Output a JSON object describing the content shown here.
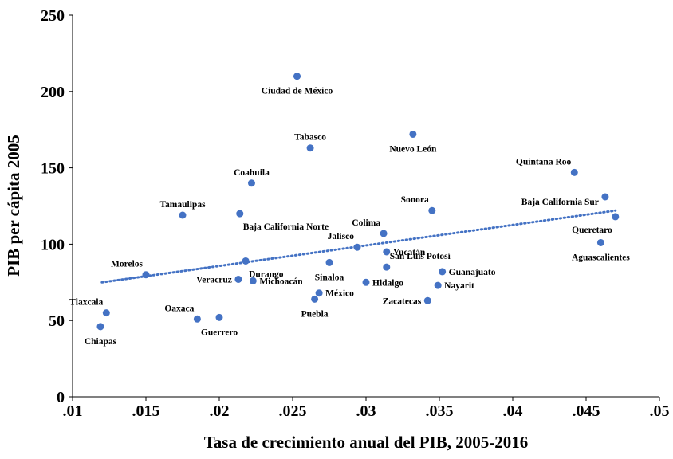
{
  "chart_data": {
    "type": "scatter",
    "title": "",
    "xlabel": "Tasa de crecimiento anual del PIB, 2005-2016",
    "ylabel": "PIB per cápita 2005",
    "xlim": [
      0.01,
      0.05
    ],
    "ylim": [
      0,
      250
    ],
    "x_ticks": [
      0.01,
      0.015,
      0.02,
      0.025,
      0.03,
      0.035,
      0.04,
      0.045,
      0.05
    ],
    "x_tick_labels": [
      ".01",
      ".015",
      ".02",
      ".025",
      ".03",
      ".035",
      ".04",
      ".045",
      ".05"
    ],
    "y_ticks": [
      0,
      50,
      100,
      150,
      200,
      250
    ],
    "y_tick_labels": [
      "0",
      "50",
      "100",
      "150",
      "200",
      "250"
    ],
    "grid": false,
    "point_color": "#4472c4",
    "trendline": {
      "style": "dotted",
      "color": "#4472c4",
      "x": [
        0.012,
        0.047
      ],
      "y": [
        75,
        122
      ]
    },
    "points": [
      {
        "label": "Ciudad de México",
        "x": 0.0253,
        "y": 210,
        "anchor": "below"
      },
      {
        "label": "Tabasco",
        "x": 0.0262,
        "y": 163,
        "anchor": "above"
      },
      {
        "label": "Nuevo León",
        "x": 0.0332,
        "y": 172,
        "anchor": "below"
      },
      {
        "label": "Quintana Roo",
        "x": 0.0442,
        "y": 147,
        "anchor": "above-left"
      },
      {
        "label": "Baja California Sur",
        "x": 0.0463,
        "y": 131,
        "anchor": "far-left"
      },
      {
        "label": "Coahuila",
        "x": 0.0222,
        "y": 140,
        "anchor": "above"
      },
      {
        "label": "Sonora",
        "x": 0.0345,
        "y": 122,
        "anchor": "above-left"
      },
      {
        "label": "Tamaulipas",
        "x": 0.0175,
        "y": 119,
        "anchor": "above"
      },
      {
        "label": "Baja California Norte",
        "x": 0.0214,
        "y": 120,
        "anchor": "below-right"
      },
      {
        "label": "Queretaro",
        "x": 0.047,
        "y": 118,
        "anchor": "below-left"
      },
      {
        "label": "Colima",
        "x": 0.0312,
        "y": 107,
        "anchor": "above-left"
      },
      {
        "label": "Jalisco",
        "x": 0.0294,
        "y": 98,
        "anchor": "above-left"
      },
      {
        "label": "Aguascalientes",
        "x": 0.046,
        "y": 101,
        "anchor": "below"
      },
      {
        "label": "Yucatán",
        "x": 0.0314,
        "y": 95,
        "anchor": "right"
      },
      {
        "label": "Durango",
        "x": 0.0218,
        "y": 89,
        "anchor": "below-right"
      },
      {
        "label": "Sinaloa",
        "x": 0.0275,
        "y": 88,
        "anchor": "below"
      },
      {
        "label": "San Luis Potosí",
        "x": 0.0314,
        "y": 85,
        "anchor": "above-right"
      },
      {
        "label": "Guanajuato",
        "x": 0.0352,
        "y": 82,
        "anchor": "right"
      },
      {
        "label": "Morelos",
        "x": 0.015,
        "y": 80,
        "anchor": "above-left"
      },
      {
        "label": "Veracruz",
        "x": 0.0213,
        "y": 77,
        "anchor": "left"
      },
      {
        "label": "Michoacán",
        "x": 0.0223,
        "y": 76,
        "anchor": "right"
      },
      {
        "label": "Hidalgo",
        "x": 0.03,
        "y": 75,
        "anchor": "right"
      },
      {
        "label": "Nayarit",
        "x": 0.0349,
        "y": 73,
        "anchor": "right"
      },
      {
        "label": "México",
        "x": 0.0268,
        "y": 68,
        "anchor": "right"
      },
      {
        "label": "Puebla",
        "x": 0.0265,
        "y": 64,
        "anchor": "below"
      },
      {
        "label": "Zacatecas",
        "x": 0.0342,
        "y": 63,
        "anchor": "left"
      },
      {
        "label": "Tlaxcala",
        "x": 0.0123,
        "y": 55,
        "anchor": "above-left"
      },
      {
        "label": "Oaxaca",
        "x": 0.0185,
        "y": 51,
        "anchor": "above-left"
      },
      {
        "label": "Guerrero",
        "x": 0.02,
        "y": 52,
        "anchor": "below"
      },
      {
        "label": "Chiapas",
        "x": 0.0119,
        "y": 46,
        "anchor": "below"
      }
    ]
  }
}
